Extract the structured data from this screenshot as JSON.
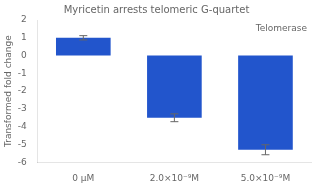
{
  "chart_data": {
    "type": "bar",
    "title": "Myricetin arrests telomeric G-quartet",
    "annotations": [
      "Telomerase"
    ],
    "categories": [
      "0 μM",
      "2.0×10⁻⁹M",
      "5.0×10⁻⁹M"
    ],
    "values": [
      1.0,
      -3.5,
      -5.3
    ],
    "errors": [
      0.12,
      0.22,
      0.28
    ],
    "color": "#2255cc",
    "ylabel": "Transformed fold change",
    "ylim": [
      -6,
      2
    ],
    "yticks": [
      -6,
      -5,
      -4,
      -3,
      -2,
      -1,
      0,
      1,
      2
    ],
    "grid": false
  }
}
